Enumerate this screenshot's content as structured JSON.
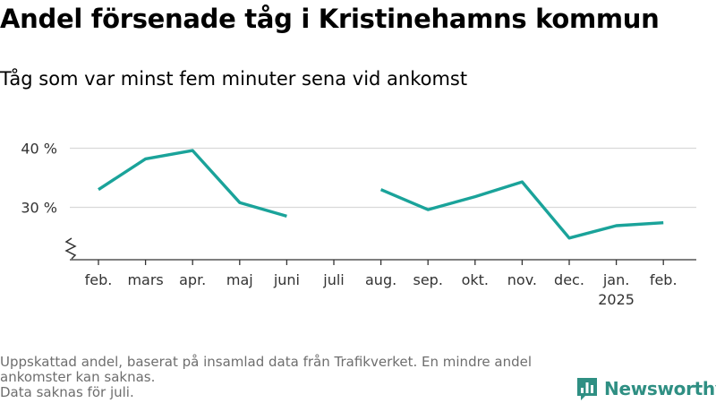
{
  "header": {
    "title": "Andel försenade tåg i Kristinehamns kommun",
    "subtitle": "Tåg som var minst fem minuter sena vid ankomst"
  },
  "footer": {
    "note_line1": "Uppskattad andel, baserat på insamlad data från Trafikverket. En mindre andel",
    "note_line2": "ankomster kan saknas.",
    "note_line3": "Data saknas för juli.",
    "logo_text": "Newsworthy",
    "logo_icon": "bar-chart-icon"
  },
  "colors": {
    "line": "#1aa39a",
    "grid": "#d9d9d9",
    "axis": "#333333",
    "logo": "#2f8f83"
  },
  "chart_data": {
    "type": "line",
    "categories": [
      "feb.",
      "mars",
      "apr.",
      "maj",
      "juni",
      "juli",
      "aug.",
      "sep.",
      "okt.",
      "nov.",
      "dec.",
      "jan.",
      "feb."
    ],
    "year_labels": [
      "",
      "",
      "",
      "",
      "",
      "",
      "",
      "",
      "",
      "",
      "",
      "2025",
      ""
    ],
    "series": [
      {
        "values": [
          33.0,
          38.2,
          39.6,
          30.8,
          28.5,
          null,
          33.0,
          29.6,
          31.8,
          34.3,
          24.8,
          26.9,
          27.4
        ]
      }
    ],
    "yticks": [
      30,
      40
    ],
    "ytick_labels": [
      "30 %",
      "40 %"
    ],
    "ylim": [
      21,
      43
    ],
    "axis_break": true,
    "grid": true,
    "legend": "none"
  }
}
